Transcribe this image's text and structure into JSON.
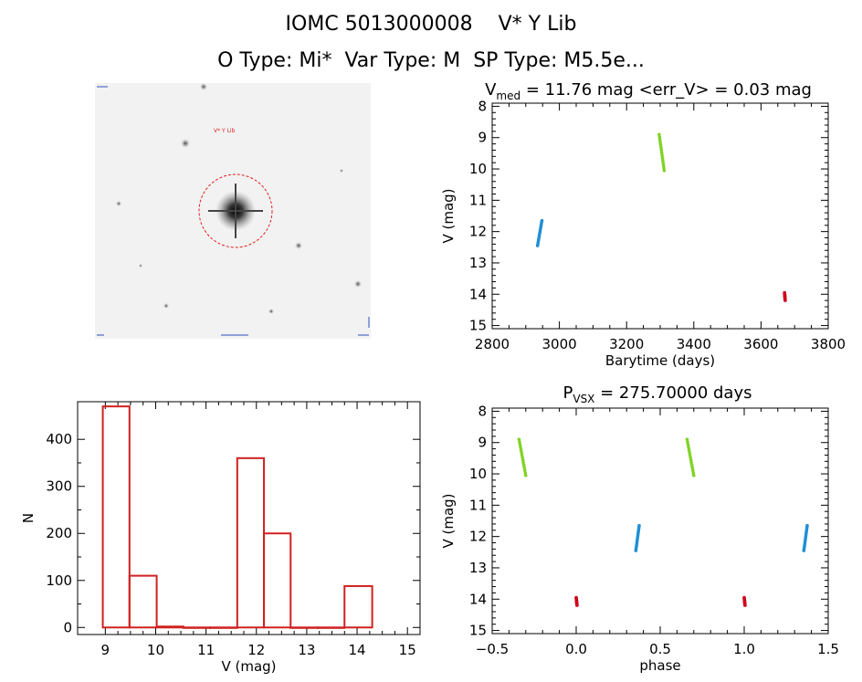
{
  "header": {
    "line1": "IOMC 5013000008    V* Y Lib",
    "line2": "O Type: Mi*  Var Type: M  SP Type: M5.5e..."
  },
  "colors": {
    "blue": "#1f8fd6",
    "green": "#7ed321",
    "red": "#d0021b",
    "hist": "#d02020",
    "circle": "#e02020"
  },
  "chart_data": [
    {
      "type": "image",
      "name": "finder-chart",
      "labels": [
        "V* Y Lib"
      ]
    },
    {
      "type": "scatter",
      "name": "light-curve",
      "title_main": "V",
      "title_sub": "med",
      "title_rest": " = 11.76 mag <err_V> = 0.03 mag",
      "xlabel": "Barytime (days)",
      "ylabel": "V (mag)",
      "xlim": [
        2800,
        3800
      ],
      "ylim": [
        15.1,
        7.9
      ],
      "xticks": [
        2800,
        3000,
        3200,
        3400,
        3600,
        3800
      ],
      "yticks": [
        8,
        9,
        10,
        11,
        12,
        13,
        14,
        15
      ],
      "series": [
        {
          "name": "epoch-1",
          "color": "blue",
          "x_start": 2935,
          "x_end": 2948,
          "y_start": 12.45,
          "y_end": 11.65
        },
        {
          "name": "epoch-2",
          "color": "green",
          "x_start": 3297,
          "x_end": 3312,
          "y_start": 8.9,
          "y_end": 10.05
        },
        {
          "name": "epoch-3",
          "color": "red",
          "x_start": 3670,
          "x_end": 3672,
          "y_start": 13.95,
          "y_end": 14.2
        }
      ]
    },
    {
      "type": "scatter",
      "name": "phased-curve",
      "title_main": "P",
      "title_sub": "VSX",
      "title_rest": " = 275.70000 days",
      "xlabel": "phase",
      "ylabel": "V (mag)",
      "xlim": [
        -0.5,
        1.5
      ],
      "ylim": [
        15.1,
        7.9
      ],
      "xticks": [
        -0.5,
        0.0,
        0.5,
        1.0,
        1.5
      ],
      "xtick_labels": [
        "−0.5",
        "0.0",
        "0.5",
        "1.0",
        "1.5"
      ],
      "yticks": [
        8,
        9,
        10,
        11,
        12,
        13,
        14,
        15
      ],
      "series": [
        {
          "name": "green-a",
          "color": "green",
          "x_start": -0.34,
          "x_end": -0.3,
          "y_start": 8.9,
          "y_end": 10.05
        },
        {
          "name": "green-b",
          "color": "green",
          "x_start": 0.66,
          "x_end": 0.7,
          "y_start": 8.9,
          "y_end": 10.05
        },
        {
          "name": "blue-a",
          "color": "blue",
          "x_start": 0.355,
          "x_end": 0.375,
          "y_start": 12.45,
          "y_end": 11.65
        },
        {
          "name": "blue-b",
          "color": "blue",
          "x_start": 1.355,
          "x_end": 1.375,
          "y_start": 12.45,
          "y_end": 11.65
        },
        {
          "name": "red-a",
          "color": "red",
          "x_start": 0.0,
          "x_end": 0.005,
          "y_start": 13.95,
          "y_end": 14.2
        },
        {
          "name": "red-b",
          "color": "red",
          "x_start": 1.0,
          "x_end": 1.005,
          "y_start": 13.95,
          "y_end": 14.2
        }
      ]
    },
    {
      "type": "bar",
      "name": "histogram",
      "xlabel": "V (mag)",
      "ylabel": "N",
      "xlim": [
        8.45,
        15.25
      ],
      "ylim": [
        -15,
        480
      ],
      "xticks": [
        9,
        10,
        11,
        12,
        13,
        14,
        15
      ],
      "yticks": [
        0,
        100,
        200,
        300,
        400
      ],
      "bins": [
        {
          "x0": 8.95,
          "x1": 9.48,
          "value": 470
        },
        {
          "x0": 9.48,
          "x1": 10.02,
          "value": 110
        },
        {
          "x0": 10.02,
          "x1": 10.55,
          "value": 2
        },
        {
          "x0": 10.55,
          "x1": 11.08,
          "value": 0
        },
        {
          "x0": 11.08,
          "x1": 11.62,
          "value": 0
        },
        {
          "x0": 11.62,
          "x1": 12.15,
          "value": 360
        },
        {
          "x0": 12.15,
          "x1": 12.68,
          "value": 200
        },
        {
          "x0": 12.68,
          "x1": 13.22,
          "value": 0
        },
        {
          "x0": 13.22,
          "x1": 13.75,
          "value": 0
        },
        {
          "x0": 13.75,
          "x1": 14.3,
          "value": 88
        }
      ]
    }
  ]
}
